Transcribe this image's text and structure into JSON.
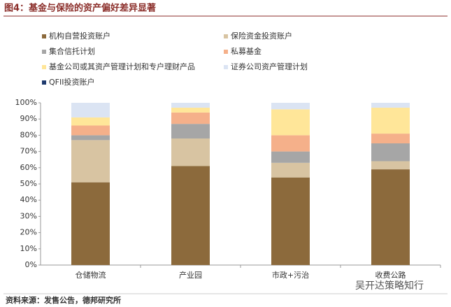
{
  "chart_data": {
    "type": "stacked_bar",
    "title": "图4：基金与保险的资产偏好差异显著",
    "source": "资料来源：发售公告，德邦研究所",
    "watermark": "吴开达策略知行",
    "categories": [
      "仓储物流",
      "产业园",
      "市政+污治",
      "收费公路"
    ],
    "series": [
      {
        "name": "机构自营投资账户",
        "color": "#8c6a3c",
        "values": [
          51,
          61,
          54,
          59
        ]
      },
      {
        "name": "保险资金投资账户",
        "color": "#d8c4a2",
        "values": [
          26,
          17,
          9,
          5
        ]
      },
      {
        "name": "集合信托计划",
        "color": "#a6a6a6",
        "values": [
          3,
          9,
          7,
          11
        ]
      },
      {
        "name": "私募基金",
        "color": "#f5b08a",
        "values": [
          6,
          7,
          10,
          6
        ]
      },
      {
        "name": "基金公司或其资产管理计划和专户理财产品",
        "color": "#ffe699",
        "values": [
          5,
          3,
          16,
          16
        ]
      },
      {
        "name": "证券公司资产管理计划",
        "color": "#dbe4f3",
        "values": [
          9,
          3,
          4,
          3
        ]
      },
      {
        "name": "QFII投资账户",
        "color": "#1f3a6e",
        "values": [
          0,
          0,
          0,
          0
        ]
      }
    ],
    "ylim": [
      0,
      100
    ],
    "yticks": [
      {
        "value": 0,
        "label": "0%"
      },
      {
        "value": 10,
        "label": "10%"
      },
      {
        "value": 20,
        "label": "20%"
      },
      {
        "value": 30,
        "label": "30%"
      },
      {
        "value": 40,
        "label": "40%"
      },
      {
        "value": 50,
        "label": "50%"
      },
      {
        "value": 60,
        "label": "60%"
      },
      {
        "value": 70,
        "label": "70%"
      },
      {
        "value": 80,
        "label": "80%"
      },
      {
        "value": 90,
        "label": "90%"
      },
      {
        "value": 100,
        "label": "100%"
      }
    ]
  }
}
